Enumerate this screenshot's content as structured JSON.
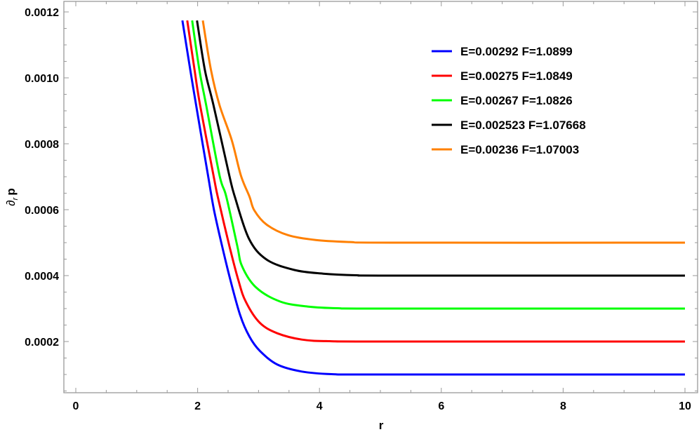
{
  "chart_data": {
    "type": "line",
    "title": "",
    "xlabel": "r",
    "ylabel": "∂_r p",
    "xlim": [
      -0.2,
      10.2
    ],
    "ylim": [
      4.26e-05,
      0.001232
    ],
    "x_ticks": [
      0,
      2,
      4,
      6,
      8,
      10
    ],
    "x_tick_labels": [
      "0",
      "2",
      "4",
      "6",
      "8",
      "10"
    ],
    "y_ticks": [
      0.0002,
      0.0004,
      0.0006,
      0.0008,
      0.001,
      0.0012
    ],
    "y_tick_labels": [
      "0.0002",
      "0.0004",
      "0.0006",
      "0.0008",
      "0.0010",
      "0.0012"
    ],
    "grid": false,
    "legend_position": "upper right (inside)",
    "series": [
      {
        "name": "E=0.00292 F=1.0899",
        "color": "#0000FF",
        "asymptote": 0.0001,
        "points": [
          [
            1.75,
            0.001174
          ],
          [
            1.88,
            0.001023
          ],
          [
            2.0,
            0.00089
          ],
          [
            2.17,
            0.000704
          ],
          [
            2.27,
            0.000598
          ],
          [
            2.4,
            0.000491
          ],
          [
            2.54,
            0.000385
          ],
          [
            2.7,
            0.000279
          ],
          [
            2.85,
            0.000215
          ],
          [
            3.02,
            0.000172
          ],
          [
            3.31,
            0.00013
          ],
          [
            3.71,
            0.000109
          ],
          [
            4.2,
            0.000101
          ],
          [
            5.0,
            0.0001
          ],
          [
            10.0,
            0.0001
          ]
        ]
      },
      {
        "name": "E=0.00275 F=1.0849",
        "color": "#FF0000",
        "asymptote": 0.0002,
        "points": [
          [
            1.83,
            0.001174
          ],
          [
            1.95,
            0.001023
          ],
          [
            2.04,
            0.000917
          ],
          [
            2.26,
            0.000704
          ],
          [
            2.33,
            0.00064
          ],
          [
            2.52,
            0.000491
          ],
          [
            2.67,
            0.000385
          ],
          [
            2.79,
            0.000321
          ],
          [
            3.02,
            0.000257
          ],
          [
            3.31,
            0.000225
          ],
          [
            3.71,
            0.000206
          ],
          [
            4.17,
            0.000201
          ],
          [
            5.0,
            0.0002
          ],
          [
            10.0,
            0.0002
          ]
        ]
      },
      {
        "name": "E=0.00267 F=1.0826",
        "color": "#00FF00",
        "asymptote": 0.0003,
        "points": [
          [
            1.91,
            0.001174
          ],
          [
            2.03,
            0.001023
          ],
          [
            2.14,
            0.000917
          ],
          [
            2.36,
            0.000704
          ],
          [
            2.47,
            0.00064
          ],
          [
            2.65,
            0.000491
          ],
          [
            2.73,
            0.000428
          ],
          [
            2.96,
            0.000364
          ],
          [
            3.36,
            0.000321
          ],
          [
            3.82,
            0.000306
          ],
          [
            4.3,
            0.000301
          ],
          [
            5.0,
            0.0003
          ],
          [
            10.0,
            0.0003
          ]
        ]
      },
      {
        "name": "E=0.002523 F=1.07668",
        "color": "#000000",
        "asymptote": 0.0004,
        "points": [
          [
            1.99,
            0.001174
          ],
          [
            2.12,
            0.001023
          ],
          [
            2.26,
            0.000917
          ],
          [
            2.52,
            0.000704
          ],
          [
            2.61,
            0.00064
          ],
          [
            2.84,
            0.000513
          ],
          [
            3.13,
            0.000449
          ],
          [
            3.59,
            0.000417
          ],
          [
            4.06,
            0.000406
          ],
          [
            4.6,
            0.000401
          ],
          [
            5.2,
            0.0004
          ],
          [
            10.0,
            0.0004
          ]
        ]
      },
      {
        "name": "E=0.00236 F=1.07003",
        "color": "#FF8000",
        "asymptote": 0.0005,
        "points": [
          [
            2.085,
            0.001174
          ],
          [
            2.22,
            0.001023
          ],
          [
            2.36,
            0.000917
          ],
          [
            2.56,
            0.000811
          ],
          [
            2.71,
            0.000704
          ],
          [
            2.85,
            0.00064
          ],
          [
            2.93,
            0.000598
          ],
          [
            3.13,
            0.000555
          ],
          [
            3.48,
            0.000523
          ],
          [
            3.94,
            0.000508
          ],
          [
            4.5,
            0.000502
          ],
          [
            5.2,
            0.0005
          ],
          [
            10.0,
            0.0005
          ]
        ]
      }
    ]
  },
  "legend": {
    "items": [
      {
        "label": "E=0.00292 F=1.0899",
        "color": "#0000FF"
      },
      {
        "label": "E=0.00275 F=1.0849",
        "color": "#FF0000"
      },
      {
        "label": "E=0.00267 F=1.0826",
        "color": "#00FF00"
      },
      {
        "label": "E=0.002523 F=1.07668",
        "color": "#000000"
      },
      {
        "label": "E=0.00236 F=1.07003",
        "color": "#FF8000"
      }
    ]
  },
  "axes": {
    "x_label": "r",
    "y_label_main": "∂",
    "y_label_sub": "r",
    "y_label_tail": "p"
  }
}
